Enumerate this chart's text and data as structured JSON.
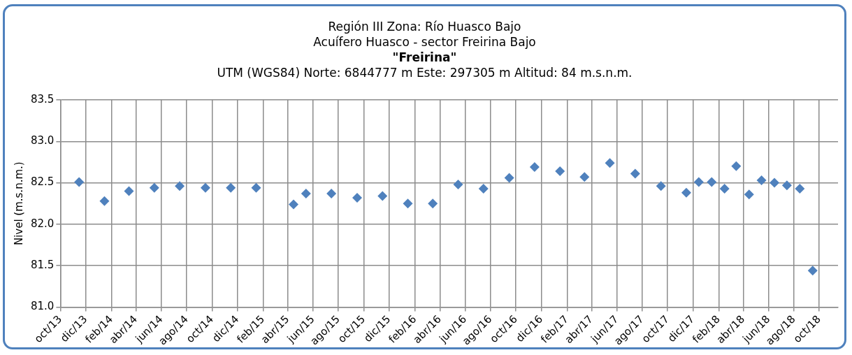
{
  "chart_data": {
    "type": "scatter",
    "title": "Región III  Zona: Río Huasco Bajo\nAcuífero Huasco - sector Freirina Bajo\n\"Freirina\"",
    "subtitle": "UTM (WGS84) Norte: 6844777 m  Este: 297305 m   Altitud: 84 m.s.n.m.",
    "ylabel": "Nivel (m.s.n.m.)",
    "x": [
      "2013-11-15",
      "2014-01-15",
      "2014-03-15",
      "2014-05-15",
      "2014-07-15",
      "2014-09-15",
      "2014-11-15",
      "2015-01-15",
      "2015-04-15",
      "2015-05-15",
      "2015-07-15",
      "2015-09-15",
      "2015-11-15",
      "2016-01-15",
      "2016-03-15",
      "2016-05-15",
      "2016-07-15",
      "2016-09-15",
      "2016-11-15",
      "2017-01-15",
      "2017-03-15",
      "2017-05-15",
      "2017-07-15",
      "2017-09-15",
      "2017-11-15",
      "2017-12-15",
      "2018-01-15",
      "2018-02-15",
      "2018-03-15",
      "2018-04-15",
      "2018-05-15",
      "2018-06-15",
      "2018-07-15",
      "2018-08-15",
      "2018-09-15"
    ],
    "series": [
      {
        "color": "#4f81bd",
        "values": [
          82.51,
          82.28,
          82.4,
          82.44,
          82.46,
          82.44,
          82.44,
          82.44,
          82.24,
          82.37,
          82.37,
          82.32,
          82.34,
          82.25,
          82.25,
          82.48,
          82.43,
          82.56,
          82.69,
          82.64,
          82.57,
          82.74,
          82.61,
          82.46,
          82.38,
          82.51,
          82.51,
          82.43,
          82.7,
          82.36,
          82.53,
          82.5,
          82.47,
          82.43,
          81.44
        ]
      }
    ],
    "xlim": [
      "2013-10-01",
      "2018-11-15"
    ],
    "xticks": [
      {
        "value": "2013-10-01",
        "label": "oct/13"
      },
      {
        "value": "2013-12-01",
        "label": "dic/13"
      },
      {
        "value": "2014-02-01",
        "label": "feb/14"
      },
      {
        "value": "2014-04-01",
        "label": "abr/14"
      },
      {
        "value": "2014-06-01",
        "label": "jun/14"
      },
      {
        "value": "2014-08-01",
        "label": "ago/14"
      },
      {
        "value": "2014-10-01",
        "label": "oct/14"
      },
      {
        "value": "2014-12-01",
        "label": "dic/14"
      },
      {
        "value": "2015-02-01",
        "label": "feb/15"
      },
      {
        "value": "2015-04-01",
        "label": "abr/15"
      },
      {
        "value": "2015-06-01",
        "label": "jun/15"
      },
      {
        "value": "2015-08-01",
        "label": "ago/15"
      },
      {
        "value": "2015-10-01",
        "label": "oct/15"
      },
      {
        "value": "2015-12-01",
        "label": "dic/15"
      },
      {
        "value": "2016-02-01",
        "label": "feb/16"
      },
      {
        "value": "2016-04-01",
        "label": "abr/16"
      },
      {
        "value": "2016-06-01",
        "label": "jun/16"
      },
      {
        "value": "2016-08-01",
        "label": "ago/16"
      },
      {
        "value": "2016-10-01",
        "label": "oct/16"
      },
      {
        "value": "2016-12-01",
        "label": "dic/16"
      },
      {
        "value": "2017-02-01",
        "label": "feb/17"
      },
      {
        "value": "2017-04-01",
        "label": "abr/17"
      },
      {
        "value": "2017-06-01",
        "label": "jun/17"
      },
      {
        "value": "2017-08-01",
        "label": "ago/17"
      },
      {
        "value": "2017-10-01",
        "label": "oct/17"
      },
      {
        "value": "2017-12-01",
        "label": "dic/17"
      },
      {
        "value": "2018-02-01",
        "label": "feb/18"
      },
      {
        "value": "2018-04-01",
        "label": "abr/18"
      },
      {
        "value": "2018-06-01",
        "label": "jun/18"
      },
      {
        "value": "2018-08-01",
        "label": "ago/18"
      },
      {
        "value": "2018-10-01",
        "label": "oct/18"
      }
    ],
    "ylim": [
      81.0,
      83.5
    ],
    "yticks": [
      {
        "value": 81.0,
        "label": "81.0"
      },
      {
        "value": 81.5,
        "label": "81.5"
      },
      {
        "value": 82.0,
        "label": "82.0"
      },
      {
        "value": 82.5,
        "label": "82.5"
      },
      {
        "value": 83.0,
        "label": "83.0"
      },
      {
        "value": 83.5,
        "label": "83.5"
      }
    ],
    "grid": true,
    "marker": "diamond"
  }
}
